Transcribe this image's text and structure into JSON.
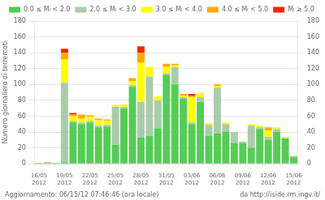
{
  "chart_data": {
    "type": "bar",
    "stacked": true,
    "ylabel": "Numero giornaliero di terremoti",
    "categories": [
      "16/05\n2012",
      null,
      null,
      "19/05\n2012",
      null,
      null,
      "22/05\n2012",
      null,
      null,
      "25/05\n2012",
      null,
      null,
      "28/05\n2012",
      null,
      null,
      "31/05\n2012",
      null,
      null,
      "03/06\n2012",
      null,
      null,
      "06/06\n2012",
      null,
      null,
      "09/06\n2012",
      null,
      null,
      "12/06\n2012",
      null,
      null,
      "15/06\n2012"
    ],
    "series": [
      {
        "name": "0.0 ≤ Mₗ < 2.0",
        "color": "#55cc55",
        "values": [
          1,
          1,
          1,
          2,
          52,
          50,
          52,
          46,
          47,
          24,
          70,
          97,
          33,
          35,
          45,
          112,
          100,
          82,
          50,
          78,
          35,
          38,
          40,
          26,
          26,
          20,
          44,
          30,
          40,
          32,
          8
        ]
      },
      {
        "name": "2.0 ≤ Mₗ < 3.0",
        "color": "#aaccaa",
        "values": [
          0,
          0,
          0,
          100,
          2,
          2,
          2,
          2,
          2,
          48,
          2,
          2,
          45,
          75,
          35,
          2,
          22,
          2,
          2,
          6,
          14,
          58,
          10,
          14,
          2,
          28,
          2,
          4,
          4,
          0,
          2
        ]
      },
      {
        "name": "3.0 ≤ Mₗ < 4.0",
        "color": "#ffff00",
        "values": [
          0,
          0,
          0,
          30,
          6,
          5,
          5,
          7,
          5,
          2,
          3,
          5,
          50,
          12,
          5,
          8,
          2,
          2,
          32,
          5,
          2,
          2,
          2,
          0,
          0,
          2,
          2,
          8,
          2,
          2,
          0
        ]
      },
      {
        "name": "4.0 ≤ Mₗ < 5.0",
        "color": "#ffaa00",
        "values": [
          0,
          1,
          0,
          8,
          2,
          5,
          2,
          2,
          2,
          0,
          0,
          4,
          12,
          0,
          0,
          4,
          2,
          2,
          2,
          0,
          0,
          2,
          0,
          0,
          0,
          0,
          0,
          4,
          0,
          0,
          0
        ]
      },
      {
        "name": "Mₗ ≥ 5.0",
        "color": "#ff2200",
        "values": [
          0,
          0,
          0,
          5,
          2,
          0,
          0,
          0,
          0,
          0,
          0,
          0,
          8,
          0,
          0,
          0,
          0,
          0,
          2,
          0,
          0,
          0,
          0,
          0,
          0,
          0,
          0,
          0,
          0,
          0,
          0
        ]
      }
    ],
    "ylim": [
      0,
      180
    ],
    "yticks": [
      0,
      20,
      40,
      60,
      80,
      100,
      120,
      140,
      160,
      180
    ],
    "y2lim": [
      0,
      180
    ],
    "y2ticks": [
      0,
      20,
      40,
      60,
      80,
      100,
      120,
      140,
      160,
      180
    ],
    "grid": true,
    "legend": "top",
    "annotations": [
      "Aggiornamento: 06/15/12 07:46:46 (ora locale)",
      "da http://iside.rm.ingv.it/"
    ]
  }
}
